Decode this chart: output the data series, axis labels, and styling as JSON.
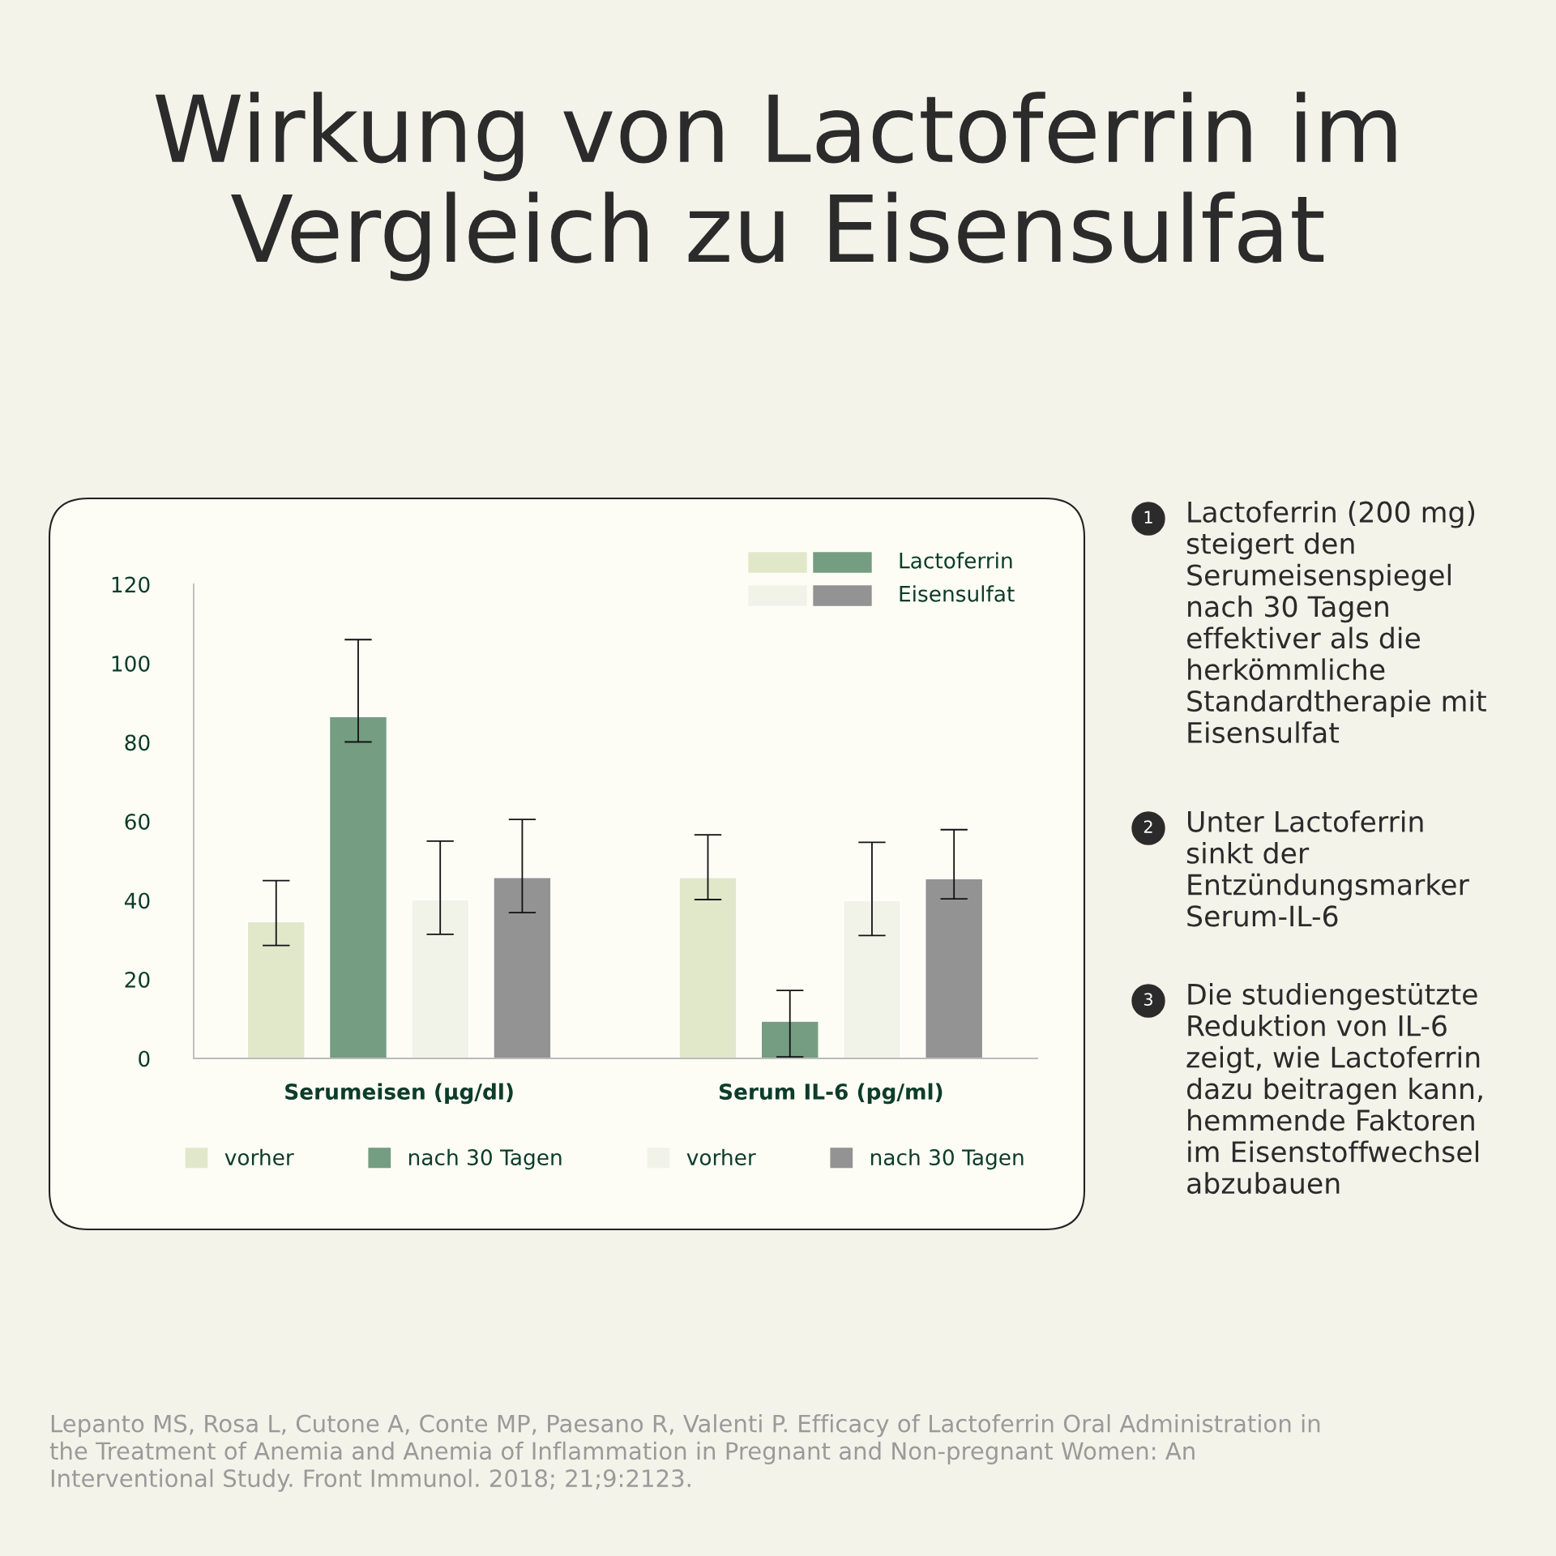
{
  "chart_data": {
    "type": "bar",
    "title": "Wirkung von Lactoferrin im\nVergleich zu Eisensulfat",
    "categories": [
      "Serumeisen (µg/dl)",
      "Serum IL-6 (pg/ml)"
    ],
    "series": [
      {
        "name": "vorher",
        "color": "#e1e8ca",
        "values": [
          34.6,
          45.8
        ],
        "errors": [
          [
            28.6,
            45.0
          ],
          [
            40.2,
            56.6
          ]
        ]
      },
      {
        "name": "nach 30 Tagen",
        "color": "#759d82",
        "values": [
          86.5,
          9.4
        ],
        "errors": [
          [
            80.1,
            106.0
          ],
          [
            0.4,
            17.2
          ]
        ]
      },
      {
        "name": "vorher",
        "color": "#f2f3e8",
        "values": [
          40.2,
          40.0
        ],
        "errors": [
          [
            31.4,
            55.0
          ],
          [
            31.1,
            54.7
          ]
        ]
      },
      {
        "name": "nach 30 Tagen",
        "color": "#939393",
        "values": [
          45.8,
          45.5
        ],
        "errors": [
          [
            36.9,
            60.5
          ],
          [
            40.4,
            57.9
          ]
        ]
      }
    ],
    "ylim": [
      0,
      120
    ],
    "yticks": [
      0,
      20,
      40,
      60,
      80,
      100,
      120
    ],
    "grid": false,
    "legend": "bottom",
    "annotations": [
      "Lactoferrin",
      "Eisensulfat",
      "1",
      "Lactoferrin (200 mg)\nsteigert den\nSerumeisenspiegel\nnach 30 Tagen\neffektiver als die\nherkömmliche\nStandardtherapie mit\nEisensulfat",
      "2",
      "Unter Lactoferrin\nsinkt der\nEntzündungsmarker\nSerum-IL-6",
      "3",
      "Die studiengestützte\nReduktion von IL-6\nzeigt, wie Lactoferrin\ndazu beitragen kann,\nhemmende Faktoren\nim Eisenstoffwechsel\nabzubauen",
      "Lepanto MS, Rosa L, Cutone A, Conte MP, Paesano R, Valenti P. Efficacy of Lactoferrin Oral Administration in\nthe Treatment of Anemia and Anemia of Inflammation in Pregnant and Non-pregnant Women: An\nInterventional Study. Front Immunol. 2018; 21;9:2123."
    ]
  }
}
